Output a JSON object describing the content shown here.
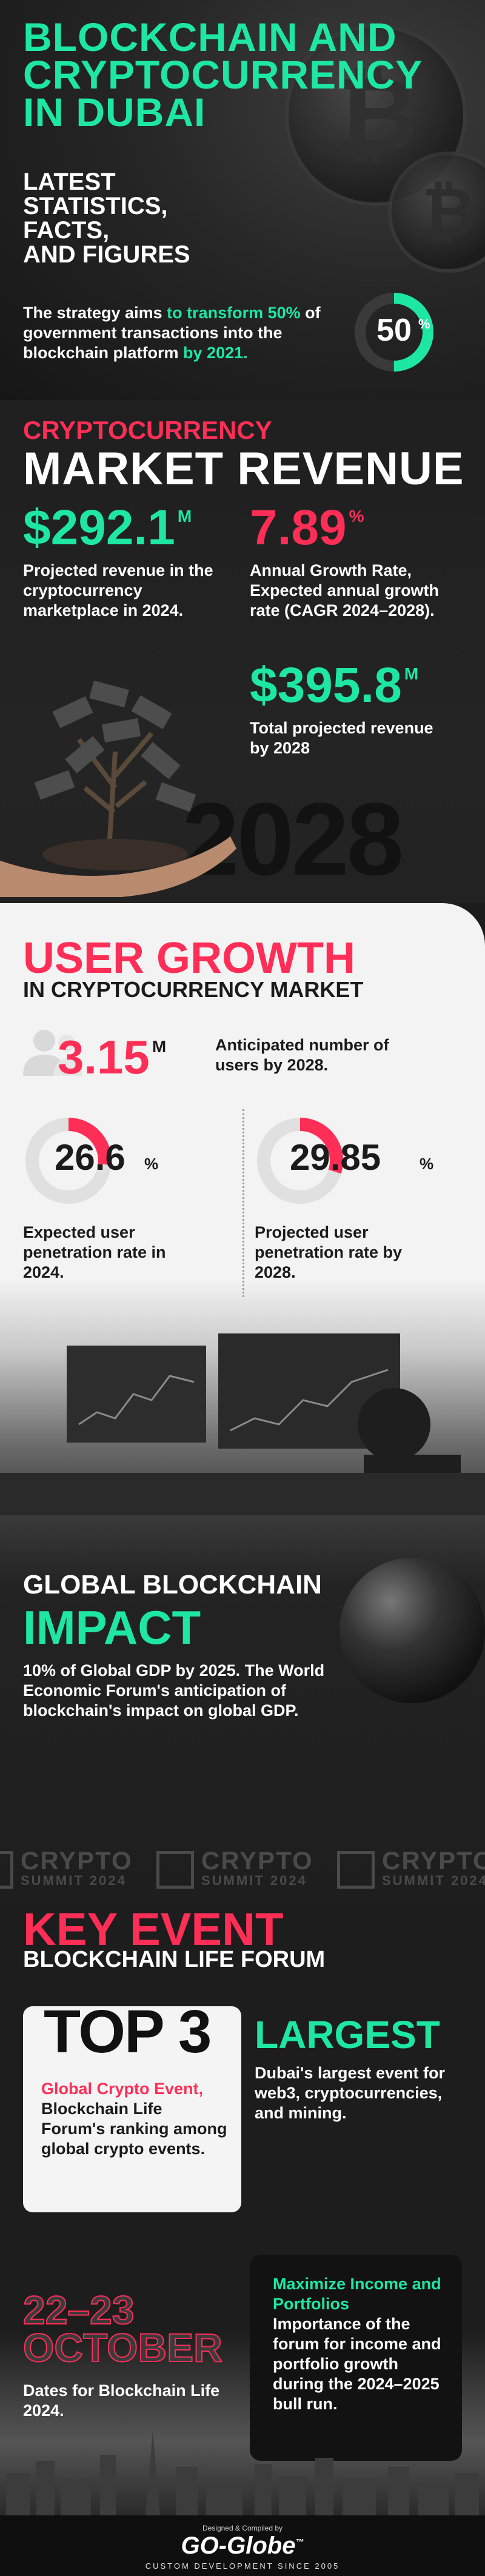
{
  "hero": {
    "title": "BLOCKCHAIN AND CRYPTOCURRENCY IN DUBAI",
    "subtitle_lines": [
      "LATEST",
      "STATISTICS,",
      "FACTS,",
      "AND FIGURES"
    ],
    "strategy_pre": "The strategy aims ",
    "strategy_hl1": "to transform 50%",
    "strategy_mid": " of government transactions into the blockchain platform ",
    "strategy_hl2": "by 2021.",
    "ring_value": "50",
    "ring_unit": "%",
    "ring_fraction": 0.5
  },
  "revenue": {
    "title_line1": "CRYPTOCURRENCY",
    "title_line2": "MARKET REVENUE",
    "stat1": {
      "value": "$292.1",
      "unit": "M",
      "desc": "Projected revenue in the cryptocurrency marketplace in 2024."
    },
    "stat2": {
      "value": "7.89",
      "unit": "%",
      "desc": "Annual Growth Rate, Expected annual growth rate (CAGR 2024–2028)."
    },
    "stat3": {
      "value": "$395.8",
      "unit": "M",
      "desc": "Total projected revenue by 2028"
    },
    "year": "2028"
  },
  "growth": {
    "title_line1": "USER GROWTH",
    "title_line2": "IN CRYPTOCURRENCY MARKET",
    "users": {
      "value": "3.15",
      "unit": "M",
      "desc": "Anticipated number of users by 2028."
    },
    "pen2024": {
      "value": "26.6",
      "unit": "%",
      "desc": "Expected user penetration rate in 2024.",
      "fraction": 0.266
    },
    "pen2028": {
      "value": "29.85",
      "unit": "%",
      "desc": "Projected user penetration rate by 2028.",
      "fraction": 0.2985
    }
  },
  "global": {
    "title_line1": "GLOBAL BLOCKCHAIN",
    "title_line2": "IMPACT",
    "desc": "10% of Global GDP by 2025. The World Economic Forum's anticipation of blockchain's impact on global GDP.",
    "ticker_top": "CRYPTO",
    "ticker_bottom": "SUMMIT 2024"
  },
  "event": {
    "title_line1": "KEY EVENT",
    "title_line2": "BLOCKCHAIN LIFE FORUM",
    "top3": "TOP 3",
    "top3_hl": "Global Crypto Event,",
    "top3_desc": " Blockchain Life Forum's ranking among global crypto events.",
    "largest": "LARGEST",
    "largest_desc": "Dubai's largest event for web3, cryptocurrencies, and mining.",
    "date_line1": "22–23",
    "date_line2": "OCTOBER",
    "date_desc": "Dates for Blockchain Life 2024.",
    "income_title": "Maximize Income and Portfolios",
    "income_desc": "Importance of the forum for income and portfolio growth during the 2024–2025 bull run."
  },
  "footer": {
    "credit": "Designed & Compiled by",
    "logo": "GO-Globe",
    "tm": "™",
    "tagline": "CUSTOM DEVELOPMENT SINCE 2005"
  },
  "colors": {
    "green": "#1ee7a3",
    "red": "#ff2e57",
    "dark": "#1d1d1d",
    "light": "#f3f3f3"
  }
}
